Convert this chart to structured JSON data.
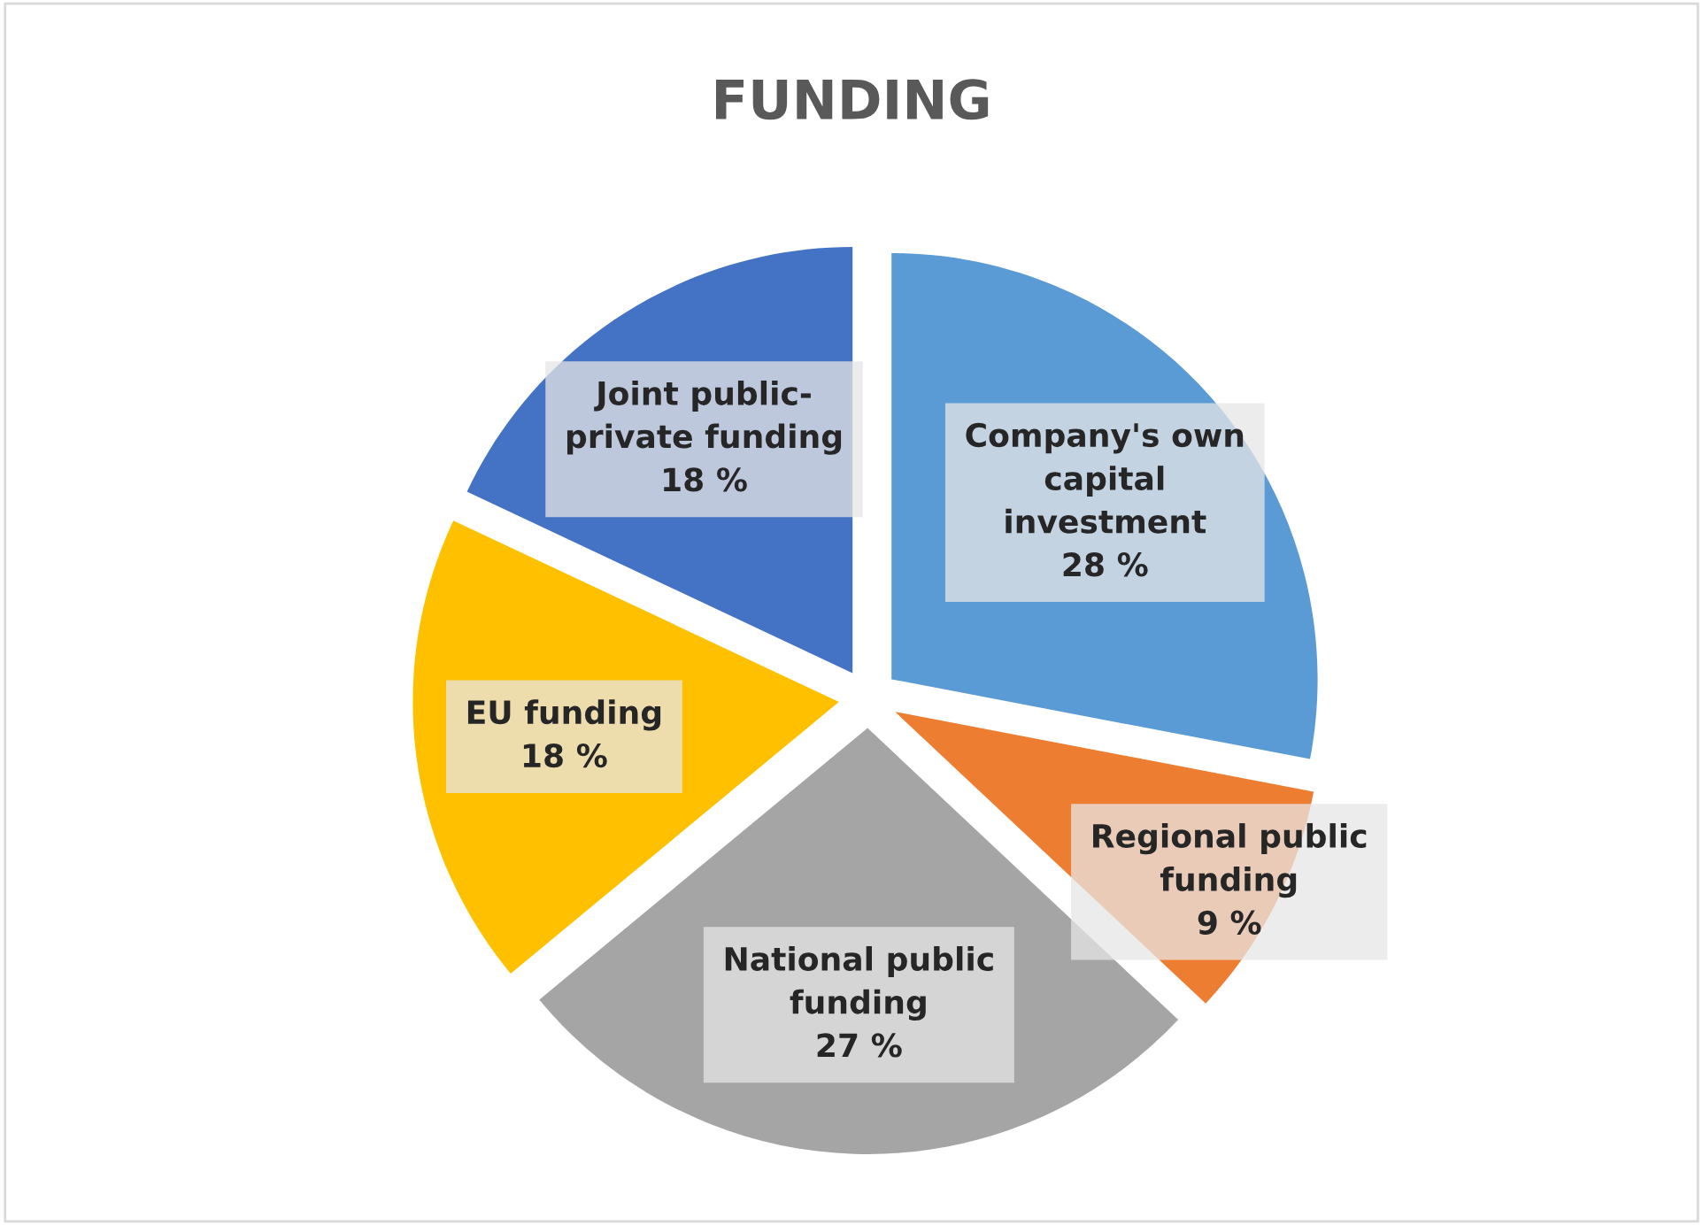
{
  "chart_data": {
    "type": "pie",
    "title": "FUNDING",
    "categories": [
      "Company's own\ncapital\ninvestment",
      "Regional public\nfunding",
      "National public\nfunding",
      "EU funding",
      "Joint public-\nprivate funding"
    ],
    "values": [
      28,
      9,
      27,
      18,
      18
    ],
    "value_labels": [
      "28 %",
      "9 %",
      "27 %",
      "18 %",
      "18 %"
    ],
    "colors": [
      "#5b9bd5",
      "#ed7d31",
      "#a5a5a5",
      "#ffc000",
      "#4472c4"
    ],
    "legend": false
  }
}
